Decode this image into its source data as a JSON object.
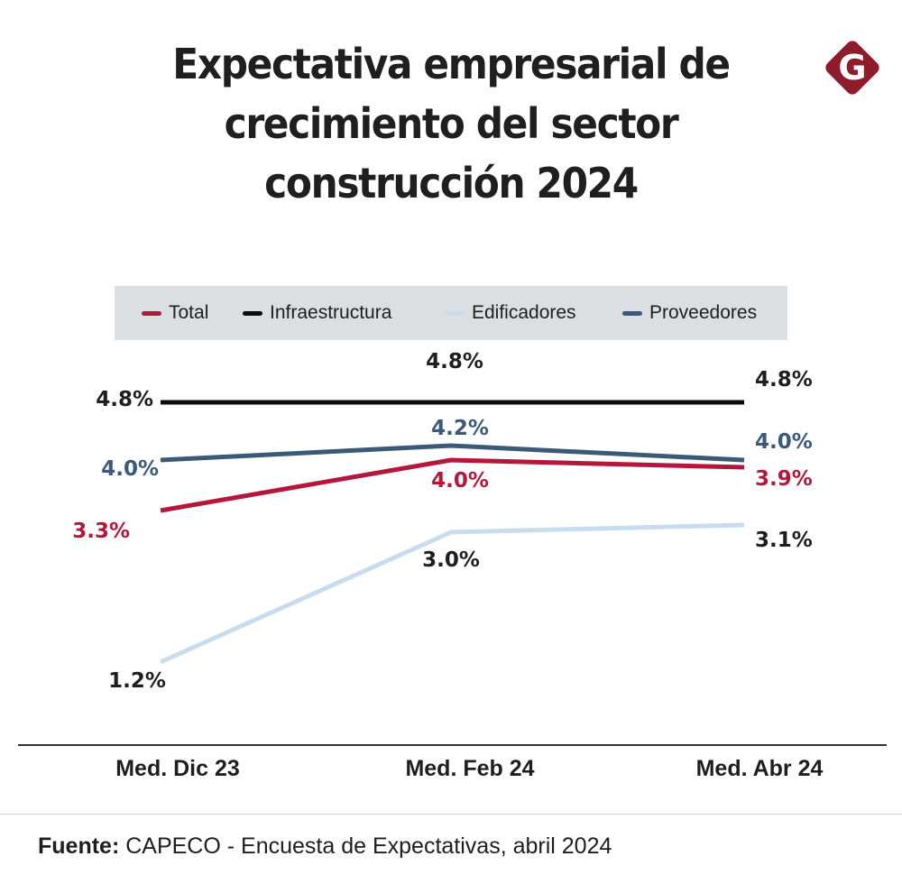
{
  "header": {
    "title_lines": [
      "Expectativa empresarial de",
      "crecimiento del sector",
      "construcción 2024"
    ],
    "logo_letter": "G",
    "logo_color": "#8f1c2b"
  },
  "chart_data": {
    "type": "line",
    "title": "Expectativa empresarial de crecimiento del sector construcción 2024",
    "xlabel": "",
    "ylabel": "",
    "categories": [
      "Med. Dic 23",
      "Med. Feb 24",
      "Med. Abr 24"
    ],
    "ylim": [
      0,
      5
    ],
    "grid": false,
    "legend_position": "top",
    "series": [
      {
        "name": "Total",
        "color": "#b5173a",
        "values": [
          3.3,
          4.0,
          3.9
        ],
        "labels": [
          "3.3%",
          "4.0%",
          "3.9%"
        ]
      },
      {
        "name": "Infraestructura",
        "color": "#0c0c0c",
        "values": [
          4.8,
          4.8,
          4.8
        ],
        "labels": [
          "4.8%",
          "4.8%",
          "4.8%"
        ]
      },
      {
        "name": "Edificadores",
        "color": "#c9dcee",
        "values": [
          1.2,
          3.0,
          3.1
        ],
        "labels": [
          "1.2%",
          "3.0%",
          "3.1%"
        ]
      },
      {
        "name": "Proveedores",
        "color": "#3a5a78",
        "values": [
          4.0,
          4.2,
          4.0
        ],
        "labels": [
          "4.0%",
          "4.2%",
          "4.0%"
        ]
      }
    ]
  },
  "footer": {
    "source_label": "Fuente:",
    "source_text": " CAPECO - Encuesta de Expectativas, abril 2024"
  }
}
